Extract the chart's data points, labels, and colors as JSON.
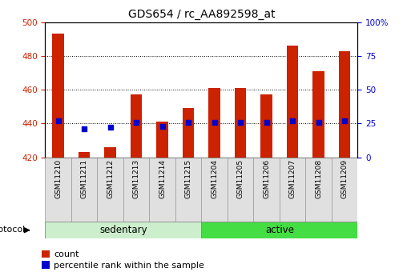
{
  "title": "GDS654 / rc_AA892598_at",
  "samples": [
    "GSM11210",
    "GSM11211",
    "GSM11212",
    "GSM11213",
    "GSM11214",
    "GSM11215",
    "GSM11204",
    "GSM11205",
    "GSM11206",
    "GSM11207",
    "GSM11208",
    "GSM11209"
  ],
  "groups": [
    "sedentary",
    "sedentary",
    "sedentary",
    "sedentary",
    "sedentary",
    "sedentary",
    "active",
    "active",
    "active",
    "active",
    "active",
    "active"
  ],
  "counts": [
    493,
    423,
    426,
    457,
    441,
    449,
    461,
    461,
    457,
    486,
    471,
    483
  ],
  "percentile_ranks": [
    27,
    21,
    22,
    26,
    23,
    26,
    26,
    26,
    26,
    27,
    26,
    27
  ],
  "ylim_left": [
    420,
    500
  ],
  "ylim_right": [
    0,
    100
  ],
  "yticks_left": [
    420,
    440,
    460,
    480,
    500
  ],
  "yticks_right": [
    0,
    25,
    50,
    75,
    100
  ],
  "bar_color": "#cc2200",
  "dot_color": "#0000cc",
  "bar_width": 0.45,
  "group_colors": {
    "sedentary": "#cceecc",
    "active": "#44dd44"
  },
  "left_tick_color": "#cc2200",
  "right_tick_color": "#0000cc",
  "grid_color": "#000000",
  "background_color": "#ffffff",
  "protocol_label": "protocol",
  "legend_count_label": "count",
  "legend_pct_label": "percentile rank within the sample",
  "base_value": 420,
  "title_fontsize": 10
}
